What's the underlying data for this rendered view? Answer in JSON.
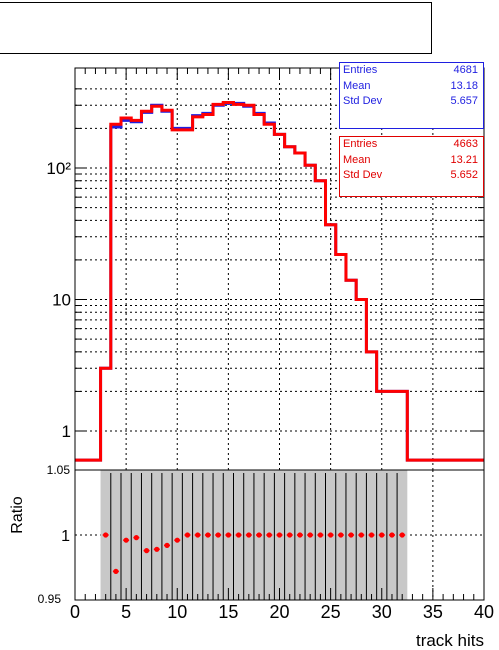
{
  "title_box": "",
  "colors": {
    "blue": "#1f1fe0",
    "red": "#ff0000",
    "band": "#c8c8c8"
  },
  "stats_blue": [
    {
      "label": "Entries",
      "value": "4681"
    },
    {
      "label": "Mean",
      "value": "13.18"
    },
    {
      "label": "Std Dev",
      "value": "5.657"
    }
  ],
  "stats_red": [
    {
      "label": "Entries",
      "value": "4663"
    },
    {
      "label": "Mean",
      "value": "13.21"
    },
    {
      "label": "Std Dev",
      "value": "5.652"
    }
  ],
  "chart_data": [
    {
      "type": "step-histogram",
      "xlabel": "",
      "ylabel": "",
      "xlim": [
        0,
        40
      ],
      "ylim": [
        0.5,
        500
      ],
      "log_y": true,
      "grid": true,
      "bin_edges": [
        0,
        1.5,
        2.5,
        3.5,
        4.5,
        5.5,
        6.5,
        7.5,
        8.5,
        9.5,
        10.5,
        11.5,
        12.5,
        13.5,
        14.5,
        15.5,
        16.5,
        17.5,
        18.5,
        19.5,
        20.5,
        21.5,
        22.5,
        23.5,
        24.5,
        25.5,
        26.5,
        27.5,
        28.5,
        29.5,
        30.5,
        31.5,
        32.5,
        40
      ],
      "series": [
        {
          "values": [
            0.6,
            0.6,
            3,
            205,
            230,
            225,
            265,
            300,
            270,
            200,
            200,
            250,
            260,
            300,
            310,
            310,
            295,
            260,
            220,
            180,
            145,
            130,
            105,
            80,
            37,
            22,
            14,
            10,
            4,
            2,
            2,
            2,
            0.6
          ]
        },
        {
          "values": [
            0.6,
            0.6,
            3,
            215,
            240,
            230,
            270,
            295,
            275,
            195,
            195,
            245,
            255,
            305,
            315,
            305,
            300,
            255,
            215,
            180,
            145,
            130,
            105,
            80,
            37,
            22,
            14,
            10,
            4,
            2,
            2,
            2,
            0.6
          ]
        }
      ],
      "y_tick_labels": [
        "1",
        "10",
        "10²"
      ]
    },
    {
      "type": "ratio",
      "ylabel": "Ratio",
      "xlabel": "track hits",
      "xlim": [
        0,
        40
      ],
      "ylim": [
        0.95,
        1.05
      ],
      "grid": true,
      "x_tick_labels": [
        "0",
        "5",
        "10",
        "15",
        "20",
        "25",
        "30",
        "35",
        "40"
      ],
      "y_tick_labels": [
        "0.95",
        "1",
        "1.05"
      ],
      "x": [
        3,
        4,
        5,
        6,
        7,
        8,
        9,
        10,
        11,
        12,
        13,
        14,
        15,
        16,
        17,
        18,
        19,
        20,
        21,
        22,
        23,
        24,
        25,
        26,
        27,
        28,
        29,
        30,
        31,
        32
      ],
      "values": [
        1.0,
        0.972,
        0.996,
        0.998,
        0.988,
        0.989,
        0.992,
        0.996,
        1.0,
        1.0,
        1.0,
        1.0,
        1.0,
        1.0,
        1.0,
        1.0,
        1.0,
        1.0,
        1.0,
        1.0,
        1.0,
        1.0,
        1.0,
        1.0,
        1.0,
        1.0,
        1.0,
        1.0,
        1.0,
        1.0
      ],
      "band": [
        2.5,
        32.5
      ]
    }
  ]
}
